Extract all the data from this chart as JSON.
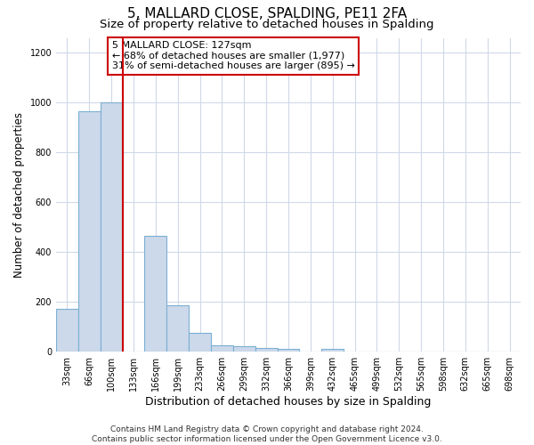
{
  "title": "5, MALLARD CLOSE, SPALDING, PE11 2FA",
  "subtitle": "Size of property relative to detached houses in Spalding",
  "xlabel": "Distribution of detached houses by size in Spalding",
  "ylabel": "Number of detached properties",
  "categories": [
    "33sqm",
    "66sqm",
    "100sqm",
    "133sqm",
    "166sqm",
    "199sqm",
    "233sqm",
    "266sqm",
    "299sqm",
    "332sqm",
    "366sqm",
    "399sqm",
    "432sqm",
    "465sqm",
    "499sqm",
    "532sqm",
    "565sqm",
    "598sqm",
    "632sqm",
    "665sqm",
    "698sqm"
  ],
  "values": [
    170,
    965,
    1000,
    0,
    465,
    185,
    75,
    25,
    20,
    15,
    10,
    0,
    10,
    0,
    0,
    0,
    0,
    0,
    0,
    0,
    0
  ],
  "bar_color": "#ccd9ea",
  "bar_edge_color": "#7bafd4",
  "red_line_x": 3,
  "red_line_color": "#cc0000",
  "annotation_text": "5 MALLARD CLOSE: 127sqm\n← 68% of detached houses are smaller (1,977)\n31% of semi-detached houses are larger (895) →",
  "annotation_box_facecolor": "#ffffff",
  "annotation_box_edgecolor": "#cc0000",
  "ylim": [
    0,
    1260
  ],
  "yticks": [
    0,
    200,
    400,
    600,
    800,
    1000,
    1200
  ],
  "footer": "Contains HM Land Registry data © Crown copyright and database right 2024.\nContains public sector information licensed under the Open Government Licence v3.0.",
  "bg_color": "#ffffff",
  "plot_bg_color": "#ffffff",
  "grid_color": "#d0d8e8",
  "title_fontsize": 11,
  "subtitle_fontsize": 9.5,
  "xlabel_fontsize": 9,
  "ylabel_fontsize": 8.5,
  "tick_fontsize": 7,
  "annot_fontsize": 8,
  "footer_fontsize": 6.5
}
